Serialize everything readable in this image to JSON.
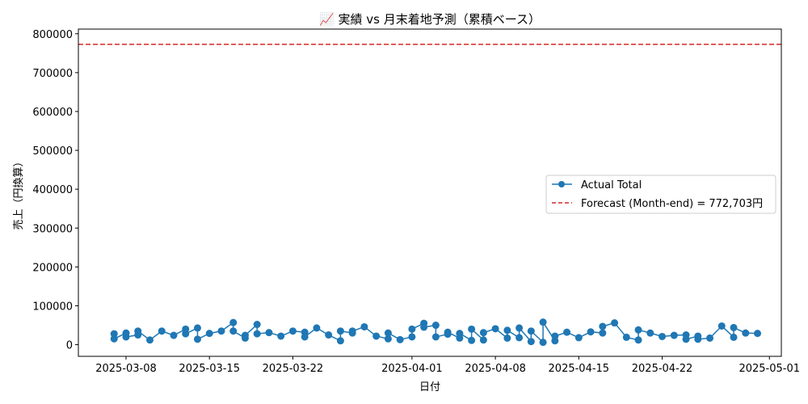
{
  "chart_data": {
    "type": "line",
    "title": "📈 実績 vs 月末着地予測（累積ベース）",
    "xlabel": "日付",
    "ylabel": "売上（円換算）",
    "ylim": [
      -30000,
      812000
    ],
    "xlim": [
      "2025-03-04",
      "2025-05-02"
    ],
    "x_ticks": [
      "2025-03-08",
      "2025-03-15",
      "2025-03-22",
      "2025-04-01",
      "2025-04-08",
      "2025-04-15",
      "2025-04-22",
      "2025-05-01"
    ],
    "y_ticks": [
      0,
      100000,
      200000,
      300000,
      400000,
      500000,
      600000,
      700000,
      800000
    ],
    "legend_position": "center-right",
    "grid": false,
    "colors": {
      "series": "#1f77b4",
      "forecast": "#d62728",
      "axes": "#000000"
    },
    "series": [
      {
        "name": "Actual Total",
        "style": "line-with-circle-markers",
        "x": [
          "2025-03-07",
          "2025-03-07",
          "2025-03-08",
          "2025-03-08",
          "2025-03-09",
          "2025-03-09",
          "2025-03-10",
          "2025-03-11",
          "2025-03-12",
          "2025-03-13",
          "2025-03-13",
          "2025-03-14",
          "2025-03-14",
          "2025-03-15",
          "2025-03-16",
          "2025-03-17",
          "2025-03-17",
          "2025-03-18",
          "2025-03-18",
          "2025-03-19",
          "2025-03-19",
          "2025-03-20",
          "2025-03-21",
          "2025-03-22",
          "2025-03-23",
          "2025-03-23",
          "2025-03-24",
          "2025-03-25",
          "2025-03-26",
          "2025-03-26",
          "2025-03-27",
          "2025-03-27",
          "2025-03-28",
          "2025-03-29",
          "2025-03-30",
          "2025-03-30",
          "2025-03-31",
          "2025-04-01",
          "2025-04-01",
          "2025-04-02",
          "2025-04-02",
          "2025-04-03",
          "2025-04-03",
          "2025-04-04",
          "2025-04-04",
          "2025-04-05",
          "2025-04-05",
          "2025-04-06",
          "2025-04-06",
          "2025-04-07",
          "2025-04-07",
          "2025-04-08",
          "2025-04-09",
          "2025-04-09",
          "2025-04-10",
          "2025-04-10",
          "2025-04-11",
          "2025-04-11",
          "2025-04-12",
          "2025-04-12",
          "2025-04-13",
          "2025-04-13",
          "2025-04-14",
          "2025-04-15",
          "2025-04-16",
          "2025-04-17",
          "2025-04-17",
          "2025-04-18",
          "2025-04-19",
          "2025-04-20",
          "2025-04-20",
          "2025-04-21",
          "2025-04-22",
          "2025-04-23",
          "2025-04-24",
          "2025-04-24",
          "2025-04-25",
          "2025-04-25",
          "2025-04-26",
          "2025-04-27",
          "2025-04-28",
          "2025-04-28",
          "2025-04-29",
          "2025-04-30"
        ],
        "y": [
          28000,
          15000,
          30000,
          20000,
          25000,
          35000,
          12000,
          35000,
          24000,
          40000,
          28000,
          43000,
          14000,
          29000,
          35000,
          57000,
          35000,
          17000,
          24000,
          52000,
          28000,
          31000,
          22000,
          35000,
          32000,
          20000,
          43000,
          25000,
          10000,
          35000,
          30000,
          35000,
          46000,
          22000,
          15000,
          30000,
          13000,
          20000,
          40000,
          55000,
          45000,
          50000,
          20000,
          27000,
          32000,
          17000,
          29000,
          11000,
          40000,
          12000,
          31000,
          41000,
          17000,
          37000,
          18000,
          43000,
          8000,
          35000,
          6000,
          58000,
          10000,
          22000,
          32000,
          18000,
          33000,
          30000,
          47000,
          56000,
          19000,
          12000,
          38000,
          30000,
          21000,
          24000,
          25000,
          14000,
          22000,
          14000,
          17000,
          48000,
          19000,
          44000,
          30000,
          29000
        ]
      }
    ],
    "forecast": {
      "name": "Forecast (Month-end) = 772,703円",
      "style": "dashed-line",
      "value": 772703
    }
  }
}
